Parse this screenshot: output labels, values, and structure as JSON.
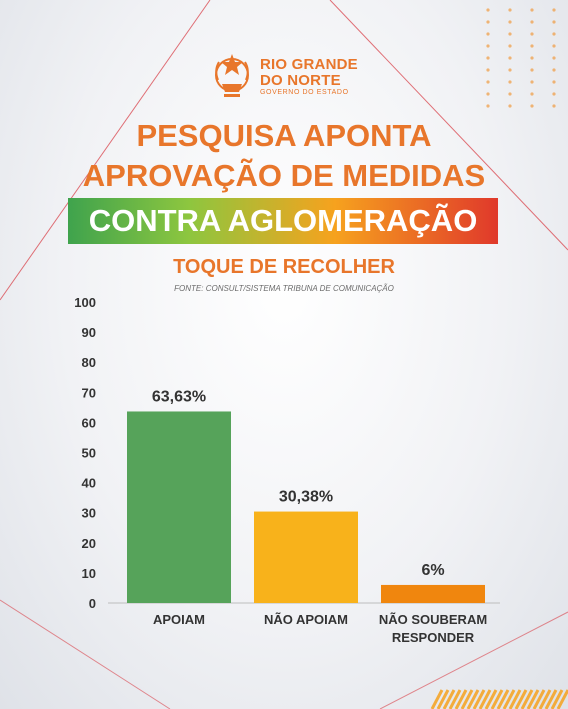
{
  "logo": {
    "line1": "RIO GRANDE",
    "line2": "DO NORTE",
    "line3": "GOVERNO DO ESTADO",
    "seal_icon": "state-coat-of-arms",
    "color": "#e8762b"
  },
  "headline": {
    "line1": "PESQUISA APONTA",
    "line2": "APROVAÇÃO DE MEDIDAS",
    "banner": "CONTRA AGLOMERAÇÃO",
    "color": "#e8762b"
  },
  "chart_data": {
    "type": "bar",
    "title": "TOQUE DE RECOLHER",
    "subtitle": "FONTE: CONSULT/SISTEMA TRIBUNA DE COMUNICAÇÃO",
    "categories": [
      [
        "APOIAM"
      ],
      [
        "NÃO APOIAM"
      ],
      [
        "NÃO SOUBERAM",
        "RESPONDER"
      ]
    ],
    "values": [
      63.63,
      30.38,
      6
    ],
    "value_labels": [
      "63,63%",
      "30,38%",
      "6%"
    ],
    "colors": [
      "#56a35a",
      "#f8b21b",
      "#f0860e"
    ],
    "ylim": [
      0,
      100
    ],
    "yticks": [
      0,
      10,
      20,
      30,
      40,
      50,
      60,
      70,
      80,
      90,
      100
    ],
    "grid": false,
    "legend": "none"
  }
}
